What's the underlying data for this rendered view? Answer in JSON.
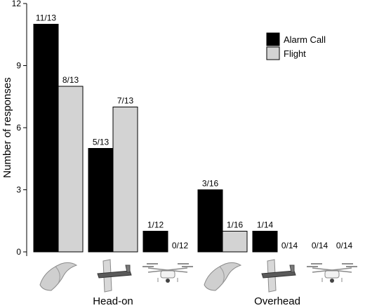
{
  "chart_data": {
    "type": "bar",
    "ylabel": "Number of responses",
    "ylim": [
      0,
      12
    ],
    "yticks": [
      "0",
      "3",
      "6",
      "9",
      "12"
    ],
    "grid": false,
    "legend_position": "top-right",
    "series": [
      {
        "name": "Alarm Call",
        "color": "#000000"
      },
      {
        "name": "Flight",
        "color": "#d3d3d3"
      }
    ],
    "categories": [
      {
        "group": "Head-on",
        "stimulus": "model bird (side view)",
        "icon": "bird-model-icon",
        "bars": [
          {
            "series": "Alarm Call",
            "value": 11,
            "label": "11/13"
          },
          {
            "series": "Flight",
            "value": 8,
            "label": "8/13"
          }
        ]
      },
      {
        "group": "Head-on",
        "stimulus": "glider-type UAV",
        "icon": "fixed-wing-drone-icon",
        "bars": [
          {
            "series": "Alarm Call",
            "value": 5,
            "label": "5/13"
          },
          {
            "series": "Flight",
            "value": 7,
            "label": "7/13"
          }
        ]
      },
      {
        "group": "Head-on",
        "stimulus": "quadcopter UAV",
        "icon": "quadcopter-drone-icon",
        "bars": [
          {
            "series": "Alarm Call",
            "value": 1,
            "label": "1/12"
          },
          {
            "series": "Flight",
            "value": 0,
            "label": "0/12"
          }
        ]
      },
      {
        "group": "Overhead",
        "stimulus": "model bird (side view)",
        "icon": "bird-model-icon",
        "bars": [
          {
            "series": "Alarm Call",
            "value": 3,
            "label": "3/16"
          },
          {
            "series": "Flight",
            "value": 1,
            "label": "1/16"
          }
        ]
      },
      {
        "group": "Overhead",
        "stimulus": "glider-type UAV",
        "icon": "fixed-wing-drone-icon",
        "bars": [
          {
            "series": "Alarm Call",
            "value": 1,
            "label": "1/14"
          },
          {
            "series": "Flight",
            "value": 0,
            "label": "0/14"
          }
        ]
      },
      {
        "group": "Overhead",
        "stimulus": "quadcopter UAV",
        "icon": "quadcopter-drone-icon",
        "bars": [
          {
            "series": "Alarm Call",
            "value": 0,
            "label": "0/14"
          },
          {
            "series": "Flight",
            "value": 0,
            "label": "0/14"
          }
        ]
      }
    ],
    "groups": [
      "Head-on",
      "Overhead"
    ]
  }
}
